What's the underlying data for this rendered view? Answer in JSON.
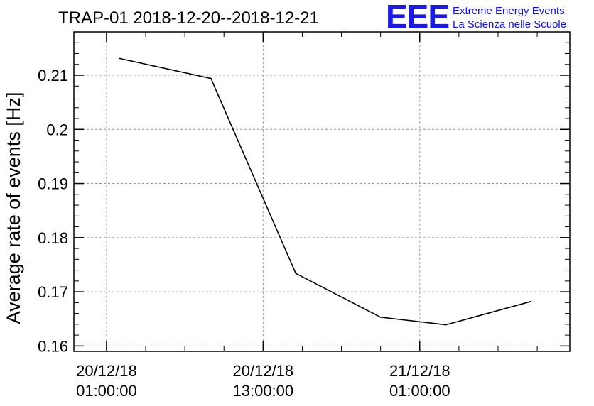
{
  "chart_data": {
    "type": "line",
    "title": "TRAP-01 2018-12-20--2018-12-21",
    "ylabel": "Average rate of events [Hz]",
    "xlabel": "",
    "x_ticks": [
      {
        "date": "20/12/18",
        "time": "01:00:00",
        "x": "2018-12-20 01:00:00"
      },
      {
        "date": "20/12/18",
        "time": "13:00:00",
        "x": "2018-12-20 13:00:00"
      },
      {
        "date": "21/12/18",
        "time": "01:00:00",
        "x": "2018-12-21 01:00:00"
      }
    ],
    "xlim": [
      "2018-12-19 22:30:00",
      "2018-12-21 12:30:00"
    ],
    "ylim": [
      0.159,
      0.218
    ],
    "y_ticks": [
      0.16,
      0.17,
      0.18,
      0.19,
      0.2,
      0.21
    ],
    "y_tick_labels": [
      "0.16",
      "0.17",
      "0.18",
      "0.19",
      "0.2",
      "0.21"
    ],
    "grid": true,
    "series": [
      {
        "x": [
          "2018-12-20 02:00:00",
          "2018-12-20 09:00:00",
          "2018-12-20 15:30:00",
          "2018-12-20 22:00:00",
          "2018-12-21 03:00:00",
          "2018-12-21 09:30:00"
        ],
        "y": [
          0.2131,
          0.2094,
          0.1734,
          0.1653,
          0.1639,
          0.1682
        ],
        "color": "#000000"
      }
    ]
  },
  "logo": {
    "mark": "EEE",
    "line1": "Extreme Energy Events",
    "line2": "La Scienza nelle Scuole",
    "color": "#1a1ae8"
  }
}
